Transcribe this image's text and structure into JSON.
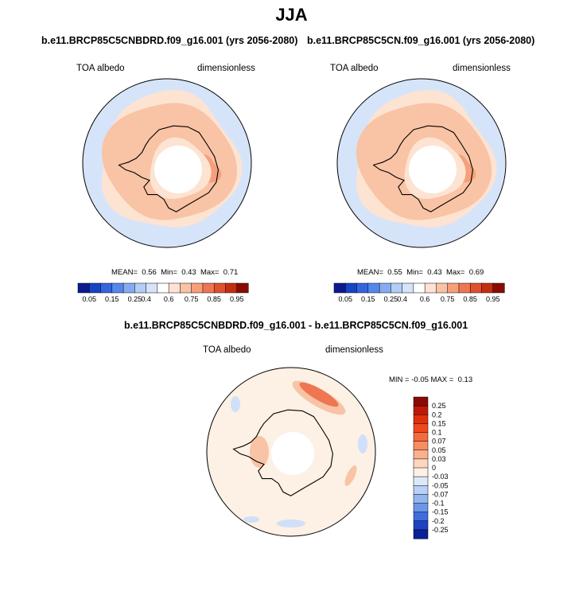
{
  "figure": {
    "season": "JJA"
  },
  "chart_data": [
    {
      "type": "heatmap",
      "title": "b.e11.BRCP85C5CNBDRD.f09_g16.001 (yrs 2056-2080)",
      "left_label": "TOA albedo",
      "right_label": "dimensionless",
      "projection": "south polar stereographic",
      "stats": {
        "mean_label": "MEAN=",
        "mean": "0.56",
        "min_label": "Min=",
        "min": "0.43",
        "max_label": "Max=",
        "max": "0.71"
      },
      "colorbar": {
        "orientation": "horizontal",
        "labels": [
          "0.05",
          "0.15",
          "0.25",
          "0.4",
          "0.6",
          "0.75",
          "0.85",
          "0.95"
        ],
        "colors": [
          "#0a1a8f",
          "#1744c4",
          "#3366dd",
          "#5588ee",
          "#88aaf2",
          "#b4ccf6",
          "#d6e4fa",
          "#ffffff",
          "#fde3d1",
          "#f9c3a5",
          "#f5a07b",
          "#ee7652",
          "#e0502d",
          "#c22e12",
          "#8b0a04"
        ]
      },
      "field_levels": {
        "ocean": "#d6e4fa",
        "ice_edge": "#fde3d1",
        "continent": "#f9c3a5",
        "high": "#f5a07b",
        "pole_hole": "#ffffff"
      }
    },
    {
      "type": "heatmap",
      "title": "b.e11.BRCP85C5CN.f09_g16.001 (yrs 2056-2080)",
      "left_label": "TOA albedo",
      "right_label": "dimensionless",
      "projection": "south polar stereographic",
      "stats": {
        "mean_label": "MEAN=",
        "mean": "0.55",
        "min_label": "Min=",
        "min": "0.43",
        "max_label": "Max=",
        "max": "0.69"
      },
      "colorbar": {
        "orientation": "horizontal",
        "labels": [
          "0.05",
          "0.15",
          "0.25",
          "0.4",
          "0.6",
          "0.75",
          "0.85",
          "0.95"
        ],
        "colors": [
          "#0a1a8f",
          "#1744c4",
          "#3366dd",
          "#5588ee",
          "#88aaf2",
          "#b4ccf6",
          "#d6e4fa",
          "#ffffff",
          "#fde3d1",
          "#f9c3a5",
          "#f5a07b",
          "#ee7652",
          "#e0502d",
          "#c22e12",
          "#8b0a04"
        ]
      },
      "field_levels": {
        "ocean": "#d6e4fa",
        "ice_edge": "#fde3d1",
        "continent": "#f9c3a5",
        "high": "#f5a07b",
        "pole_hole": "#ffffff"
      }
    },
    {
      "type": "heatmap",
      "title": "b.e11.BRCP85C5CNBDRD.f09_g16.001 - b.e11.BRCP85C5CN.f09_g16.001",
      "left_label": "TOA albedo",
      "right_label": "dimensionless",
      "projection": "south polar stereographic",
      "stats": {
        "min_label": "MIN =",
        "min": "-0.05",
        "max_label": "MAX =",
        "max": "0.13"
      },
      "colorbar": {
        "orientation": "vertical",
        "labels": [
          "0.25",
          "0.2",
          "0.15",
          "0.1",
          "0.07",
          "0.05",
          "0.03",
          "0",
          "-0.03",
          "-0.05",
          "-0.07",
          "-0.1",
          "-0.15",
          "-0.2",
          "-0.25"
        ],
        "colors": [
          "#8b0a04",
          "#c01808",
          "#e0300e",
          "#f0481c",
          "#f56a3a",
          "#f78e62",
          "#f9b18d",
          "#fcd6bd",
          "#fdf0e4",
          "#dde9fb",
          "#b9d1f6",
          "#93b6ef",
          "#6b97e8",
          "#3f6ddd",
          "#1d42c2",
          "#0b1f96"
        ]
      },
      "field_levels": {
        "background": "#fdf0e4",
        "positive": "#f9c3a5",
        "strong_positive": "#ee7652",
        "negative": "#cfe0f8",
        "pole_hole": "#ffffff"
      }
    }
  ]
}
